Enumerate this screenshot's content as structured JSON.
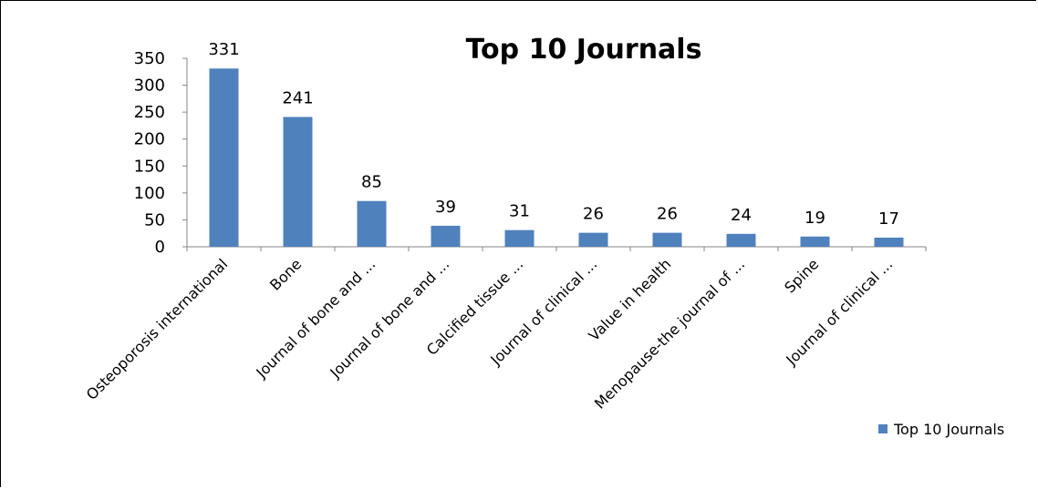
{
  "chart_data": {
    "type": "bar",
    "title": "Top 10 Journals",
    "xlabel": "",
    "ylabel": "",
    "categories": [
      "Osteoporosis international",
      "Bone",
      "Journal of bone and ...",
      "Journal of bone and ...",
      "Calcified tissue ...",
      "Journal of clinical ...",
      "Value in health",
      "Menopause-the journal of ...",
      "Spine",
      "Journal of clinical ..."
    ],
    "series": [
      {
        "name": "Top 10 Journals",
        "values": [
          331,
          241,
          85,
          39,
          31,
          26,
          26,
          24,
          19,
          17
        ],
        "color": "#4F81BD"
      }
    ],
    "ylim": [
      0,
      350
    ],
    "yticks": [
      0,
      50,
      100,
      150,
      200,
      250,
      300,
      350
    ],
    "grid": false,
    "legend_position": "bottom-right",
    "data_labels": true
  }
}
